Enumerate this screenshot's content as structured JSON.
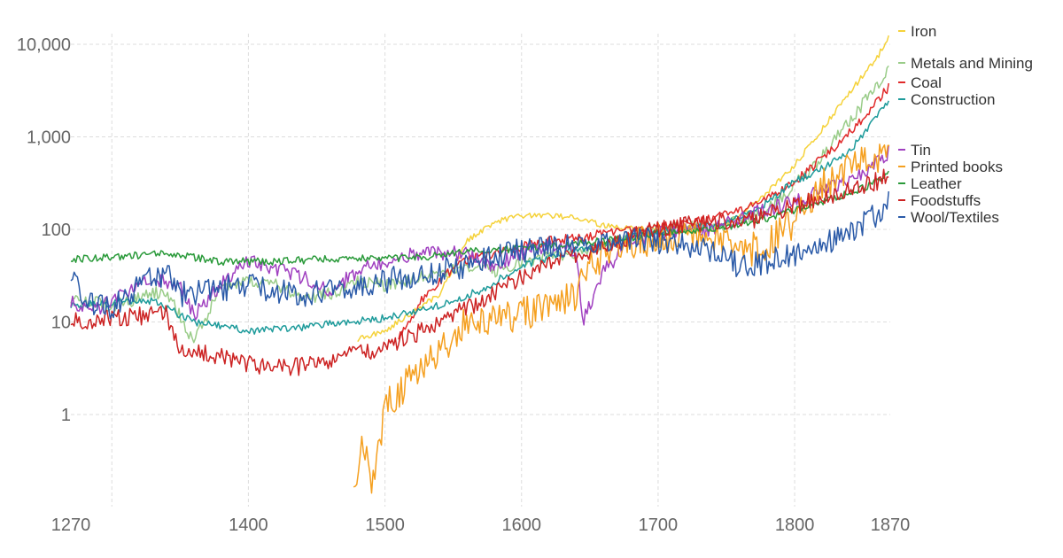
{
  "chart_data": {
    "type": "line",
    "title": "",
    "xlabel": "",
    "ylabel": "",
    "xlim": [
      1270,
      1870
    ],
    "ylim": [
      0.1,
      15000
    ],
    "y_scale": "log",
    "grid": true,
    "legend_placement": "right, labels at line ends",
    "x_ticks": [
      {
        "value": 1270,
        "label": "1270",
        "grid": false
      },
      {
        "value": 1300,
        "label": "",
        "grid": true
      },
      {
        "value": 1400,
        "label": "1400",
        "grid": true
      },
      {
        "value": 1500,
        "label": "1500",
        "grid": true
      },
      {
        "value": 1600,
        "label": "1600",
        "grid": true
      },
      {
        "value": 1700,
        "label": "1700",
        "grid": true
      },
      {
        "value": 1800,
        "label": "1800",
        "grid": true
      },
      {
        "value": 1870,
        "label": "1870",
        "grid": false
      }
    ],
    "y_ticks": [
      {
        "value": 1,
        "label": "1"
      },
      {
        "value": 10,
        "label": "10"
      },
      {
        "value": 100,
        "label": "100"
      },
      {
        "value": 1000,
        "label": "1,000"
      },
      {
        "value": 10000,
        "label": "10,000"
      }
    ],
    "series": [
      {
        "name": "Iron",
        "color": "#f5d23a",
        "noise": 0.03,
        "points": [
          [
            1480,
            6.5
          ],
          [
            1500,
            8
          ],
          [
            1540,
            20
          ],
          [
            1560,
            75
          ],
          [
            1580,
            120
          ],
          [
            1600,
            140
          ],
          [
            1620,
            140
          ],
          [
            1640,
            135
          ],
          [
            1660,
            110
          ],
          [
            1700,
            95
          ],
          [
            1740,
            100
          ],
          [
            1760,
            140
          ],
          [
            1780,
            250
          ],
          [
            1800,
            500
          ],
          [
            1820,
            1200
          ],
          [
            1840,
            3000
          ],
          [
            1860,
            7000
          ],
          [
            1870,
            13000
          ]
        ]
      },
      {
        "name": "Metals and Mining",
        "color": "#99cc88",
        "noise": 0.07,
        "points": [
          [
            1270,
            18
          ],
          [
            1300,
            15
          ],
          [
            1340,
            22
          ],
          [
            1360,
            6
          ],
          [
            1380,
            25
          ],
          [
            1400,
            28
          ],
          [
            1420,
            25
          ],
          [
            1440,
            18
          ],
          [
            1460,
            20
          ],
          [
            1480,
            28
          ],
          [
            1500,
            25
          ],
          [
            1520,
            30
          ],
          [
            1560,
            40
          ],
          [
            1580,
            35
          ],
          [
            1600,
            45
          ],
          [
            1620,
            50
          ],
          [
            1650,
            55
          ],
          [
            1680,
            85
          ],
          [
            1700,
            100
          ],
          [
            1750,
            115
          ],
          [
            1780,
            160
          ],
          [
            1800,
            300
          ],
          [
            1820,
            600
          ],
          [
            1840,
            1500
          ],
          [
            1860,
            3500
          ],
          [
            1870,
            6200
          ]
        ]
      },
      {
        "name": "Coal",
        "color": "#e02a2a",
        "noise": 0.05,
        "points": [
          [
            1510,
            7
          ],
          [
            1530,
            20
          ],
          [
            1555,
            45
          ],
          [
            1580,
            55
          ],
          [
            1600,
            65
          ],
          [
            1620,
            75
          ],
          [
            1650,
            85
          ],
          [
            1680,
            100
          ],
          [
            1700,
            105
          ],
          [
            1740,
            130
          ],
          [
            1770,
            180
          ],
          [
            1800,
            320
          ],
          [
            1830,
            800
          ],
          [
            1850,
            1600
          ],
          [
            1870,
            3600
          ]
        ]
      },
      {
        "name": "Construction",
        "color": "#1e9b9b",
        "noise": 0.04,
        "points": [
          [
            1270,
            15
          ],
          [
            1300,
            16
          ],
          [
            1330,
            17
          ],
          [
            1360,
            10
          ],
          [
            1380,
            9
          ],
          [
            1400,
            8
          ],
          [
            1430,
            8.5
          ],
          [
            1460,
            9.5
          ],
          [
            1500,
            11
          ],
          [
            1540,
            15
          ],
          [
            1570,
            22
          ],
          [
            1600,
            40
          ],
          [
            1630,
            55
          ],
          [
            1660,
            70
          ],
          [
            1700,
            95
          ],
          [
            1740,
            110
          ],
          [
            1770,
            150
          ],
          [
            1800,
            330
          ],
          [
            1820,
            450
          ],
          [
            1840,
            700
          ],
          [
            1860,
            1600
          ],
          [
            1870,
            2600
          ]
        ]
      },
      {
        "name": "Tin",
        "color": "#a040c0",
        "noise": 0.08,
        "points": [
          [
            1270,
            16
          ],
          [
            1290,
            14
          ],
          [
            1310,
            20
          ],
          [
            1330,
            30
          ],
          [
            1350,
            25
          ],
          [
            1360,
            12
          ],
          [
            1380,
            25
          ],
          [
            1400,
            45
          ],
          [
            1420,
            38
          ],
          [
            1440,
            30
          ],
          [
            1460,
            22
          ],
          [
            1480,
            35
          ],
          [
            1500,
            45
          ],
          [
            1520,
            55
          ],
          [
            1560,
            55
          ],
          [
            1580,
            40
          ],
          [
            1600,
            55
          ],
          [
            1620,
            70
          ],
          [
            1640,
            60
          ],
          [
            1645,
            10
          ],
          [
            1660,
            35
          ],
          [
            1680,
            75
          ],
          [
            1700,
            90
          ],
          [
            1740,
            100
          ],
          [
            1770,
            150
          ],
          [
            1800,
            200
          ],
          [
            1830,
            300
          ],
          [
            1850,
            400
          ],
          [
            1870,
            700
          ]
        ]
      },
      {
        "name": "Printed books",
        "color": "#f5a020",
        "noise": 0.18,
        "points": [
          [
            1477,
            0.2
          ],
          [
            1485,
            0.5
          ],
          [
            1490,
            0.15
          ],
          [
            1500,
            1.2
          ],
          [
            1520,
            2.5
          ],
          [
            1540,
            5
          ],
          [
            1560,
            10
          ],
          [
            1580,
            10
          ],
          [
            1600,
            12
          ],
          [
            1620,
            15
          ],
          [
            1640,
            20
          ],
          [
            1650,
            40
          ],
          [
            1660,
            50
          ],
          [
            1680,
            70
          ],
          [
            1700,
            80
          ],
          [
            1720,
            90
          ],
          [
            1740,
            80
          ],
          [
            1760,
            55
          ],
          [
            1780,
            70
          ],
          [
            1800,
            120
          ],
          [
            1820,
            300
          ],
          [
            1840,
            450
          ],
          [
            1860,
            600
          ],
          [
            1870,
            700
          ]
        ]
      },
      {
        "name": "Leather",
        "color": "#2a9a3a",
        "noise": 0.04,
        "points": [
          [
            1270,
            47
          ],
          [
            1300,
            50
          ],
          [
            1340,
            55
          ],
          [
            1360,
            50
          ],
          [
            1380,
            45
          ],
          [
            1420,
            45
          ],
          [
            1460,
            48
          ],
          [
            1480,
            50
          ],
          [
            1500,
            48
          ],
          [
            1540,
            52
          ],
          [
            1560,
            58
          ],
          [
            1580,
            60
          ],
          [
            1600,
            62
          ],
          [
            1620,
            65
          ],
          [
            1660,
            75
          ],
          [
            1700,
            90
          ],
          [
            1740,
            100
          ],
          [
            1770,
            120
          ],
          [
            1800,
            160
          ],
          [
            1830,
            220
          ],
          [
            1850,
            280
          ],
          [
            1870,
            400
          ]
        ]
      },
      {
        "name": "Foodstuffs",
        "color": "#cc2222",
        "noise": 0.1,
        "points": [
          [
            1270,
            10
          ],
          [
            1300,
            11
          ],
          [
            1340,
            12
          ],
          [
            1350,
            5
          ],
          [
            1370,
            4.5
          ],
          [
            1400,
            3.5
          ],
          [
            1420,
            3.2
          ],
          [
            1440,
            3.3
          ],
          [
            1460,
            3.8
          ],
          [
            1480,
            4.5
          ],
          [
            1500,
            5.5
          ],
          [
            1520,
            7
          ],
          [
            1540,
            10
          ],
          [
            1560,
            14
          ],
          [
            1580,
            20
          ],
          [
            1600,
            30
          ],
          [
            1620,
            42
          ],
          [
            1650,
            60
          ],
          [
            1680,
            85
          ],
          [
            1700,
            100
          ],
          [
            1740,
            120
          ],
          [
            1770,
            130
          ],
          [
            1800,
            180
          ],
          [
            1830,
            240
          ],
          [
            1850,
            290
          ],
          [
            1870,
            380
          ]
        ]
      },
      {
        "name": "Wool/Textiles",
        "color": "#2a5aa8",
        "noise": 0.14,
        "points": [
          [
            1270,
            30
          ],
          [
            1285,
            15
          ],
          [
            1300,
            14
          ],
          [
            1320,
            25
          ],
          [
            1340,
            35
          ],
          [
            1350,
            20
          ],
          [
            1370,
            22
          ],
          [
            1400,
            25
          ],
          [
            1420,
            22
          ],
          [
            1440,
            20
          ],
          [
            1460,
            22
          ],
          [
            1480,
            25
          ],
          [
            1500,
            28
          ],
          [
            1520,
            32
          ],
          [
            1560,
            40
          ],
          [
            1580,
            50
          ],
          [
            1600,
            60
          ],
          [
            1620,
            65
          ],
          [
            1650,
            70
          ],
          [
            1680,
            80
          ],
          [
            1700,
            75
          ],
          [
            1720,
            65
          ],
          [
            1740,
            55
          ],
          [
            1760,
            40
          ],
          [
            1780,
            45
          ],
          [
            1800,
            55
          ],
          [
            1830,
            80
          ],
          [
            1850,
            110
          ],
          [
            1870,
            200
          ]
        ]
      }
    ]
  }
}
